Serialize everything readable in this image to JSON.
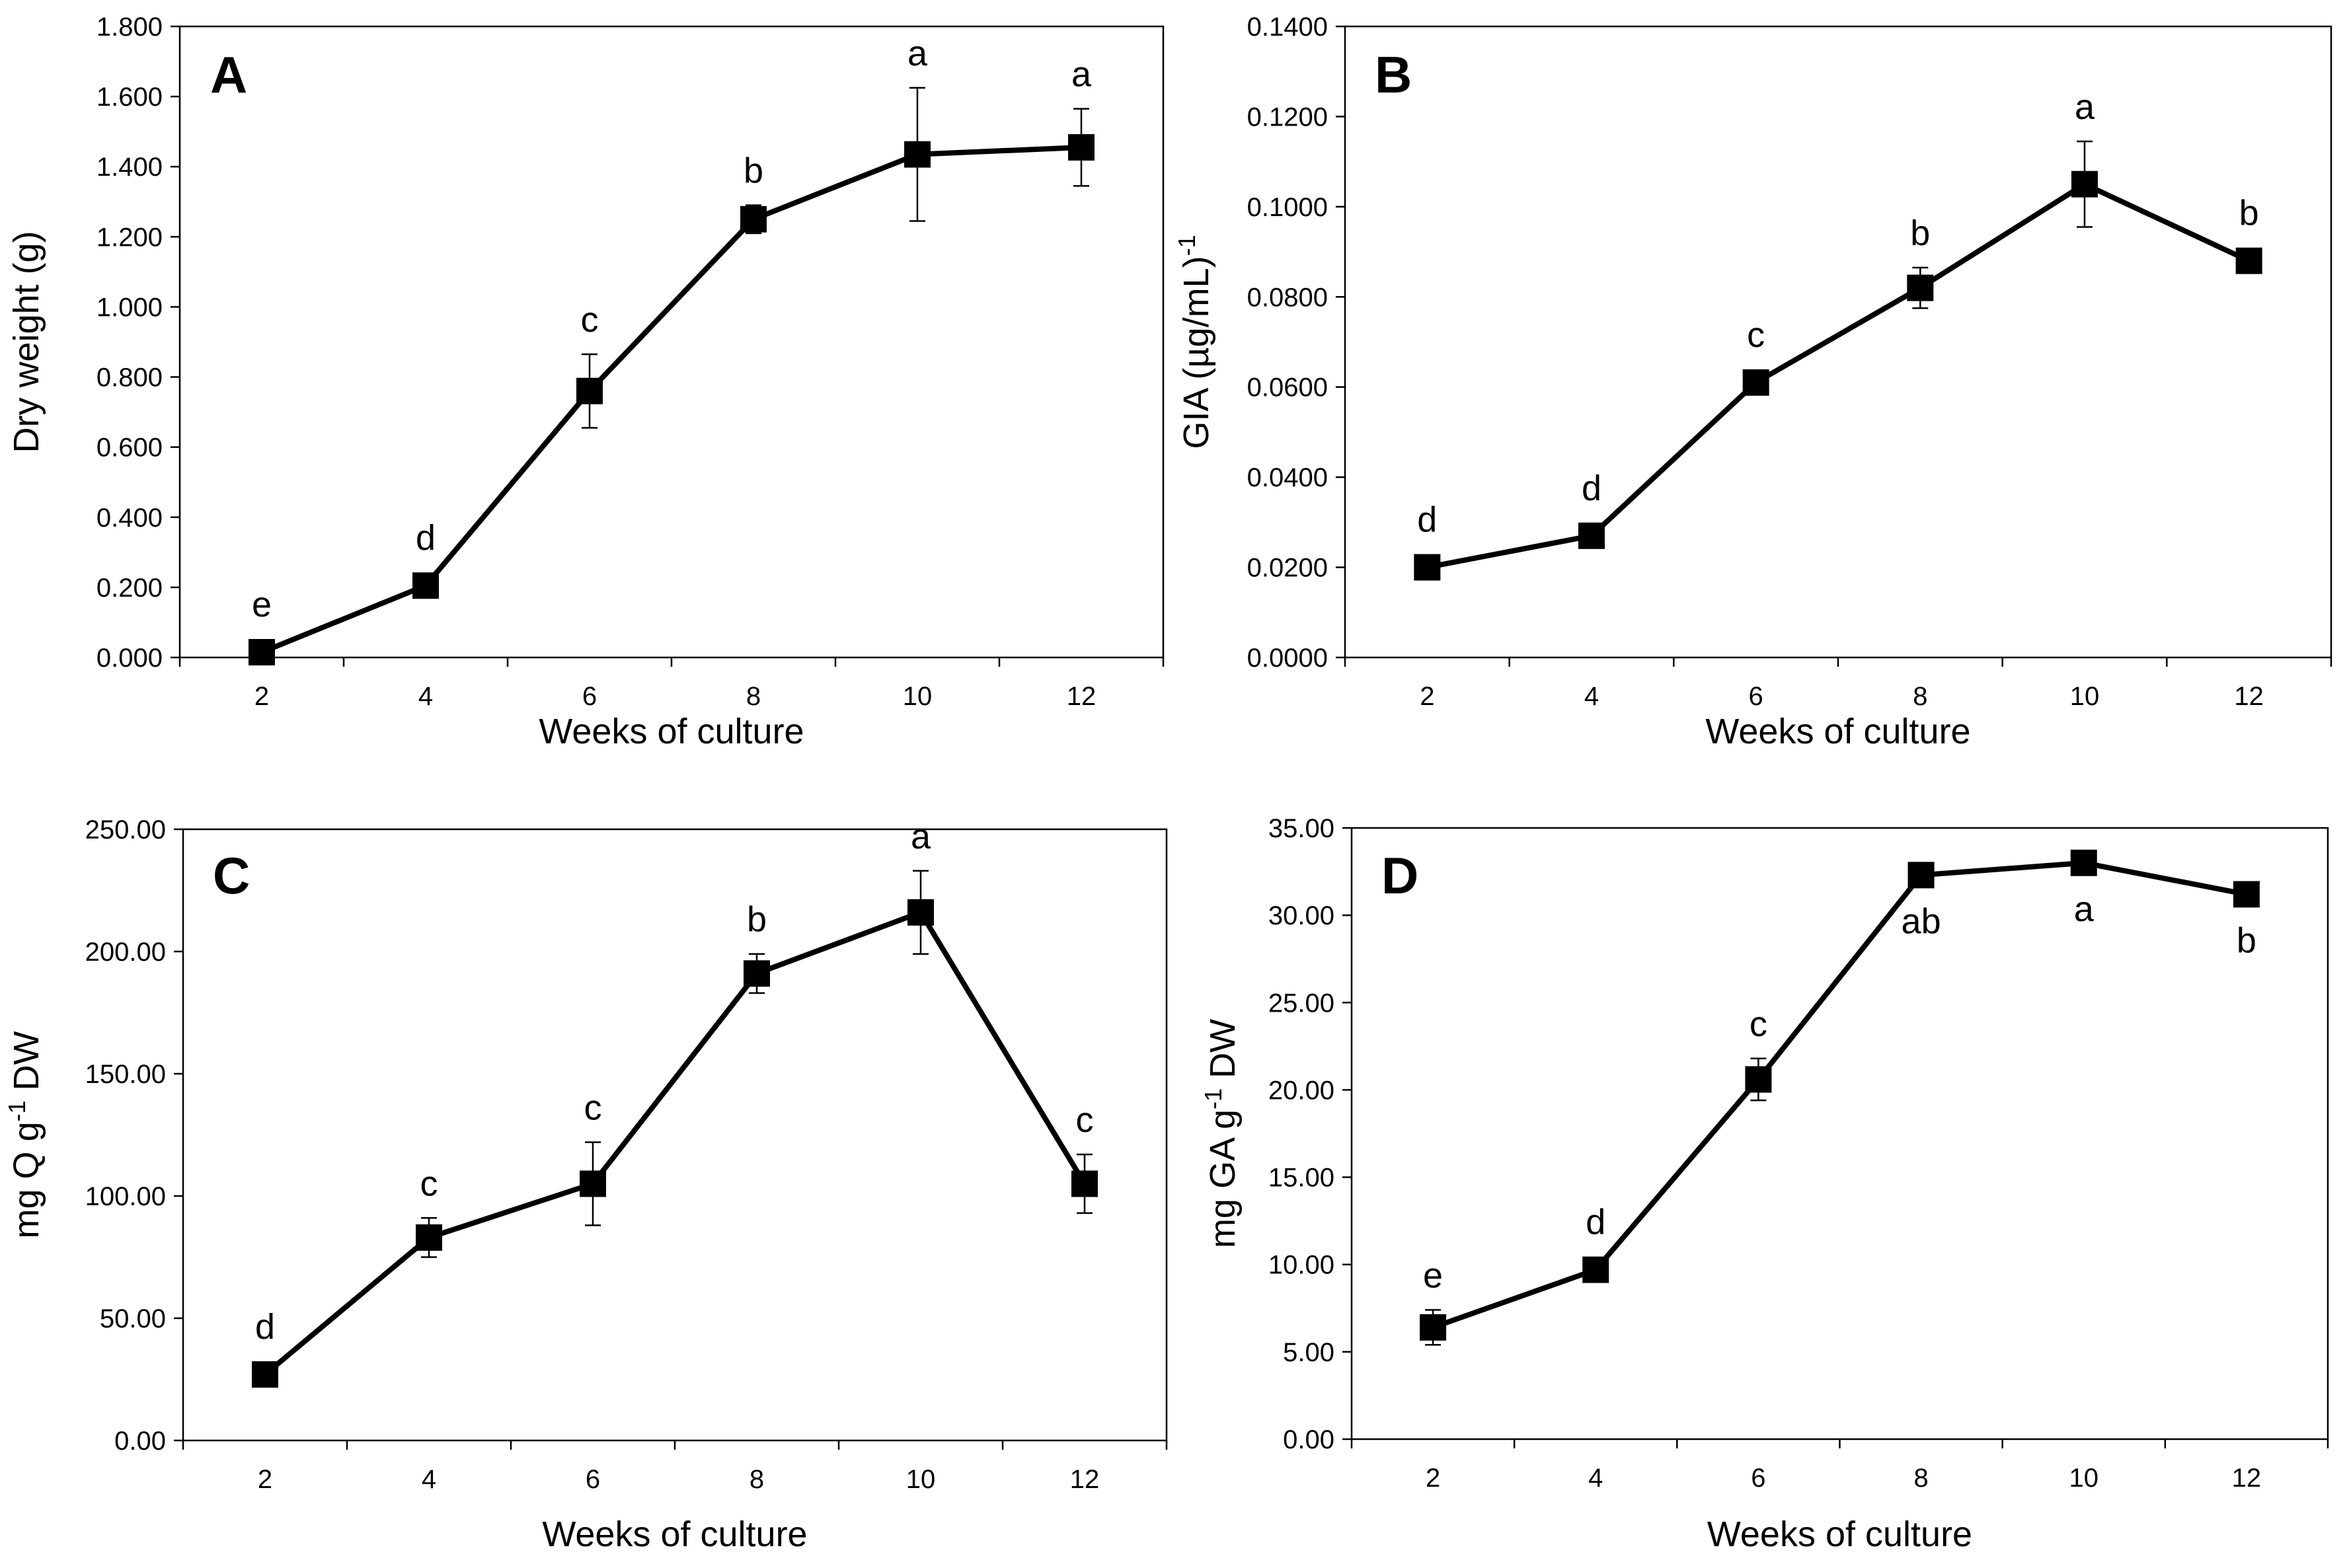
{
  "chart_data": [
    {
      "type": "line",
      "panel_label": "A",
      "title": "",
      "xlabel": "Weeks of culture",
      "ylabel_parts": [
        {
          "t": "Dry weight (g)"
        }
      ],
      "x": [
        2,
        4,
        6,
        8,
        10,
        12
      ],
      "xlim": [
        1,
        13
      ],
      "x_tick_labels": [
        "2",
        "4",
        "6",
        "8",
        "10",
        "12"
      ],
      "ylim": [
        0,
        1.8
      ],
      "y_tick_labels": [
        "0.000",
        "0.200",
        "0.400",
        "0.600",
        "0.800",
        "1.000",
        "1.200",
        "1.400",
        "1.600",
        "1.800"
      ],
      "series": [
        {
          "name": "Dry weight",
          "values": [
            0.015,
            0.205,
            0.76,
            1.25,
            1.435,
            1.455
          ],
          "errors": [
            0.0,
            0.0,
            0.105,
            0.04,
            0.19,
            0.11
          ],
          "significance": [
            "e",
            "d",
            "c",
            "b",
            "a",
            "a"
          ],
          "sig_position": "above"
        }
      ],
      "grid": false,
      "legend": "none",
      "marker": "square",
      "line_color": "#000000"
    },
    {
      "type": "line",
      "panel_label": "B",
      "title": "",
      "xlabel": "Weeks of culture",
      "ylabel_parts": [
        {
          "t": "GIA (µg/mL)"
        },
        {
          "t": "-1",
          "sup": true
        }
      ],
      "x": [
        2,
        4,
        6,
        8,
        10,
        12
      ],
      "xlim": [
        1,
        13
      ],
      "x_tick_labels": [
        "2",
        "4",
        "6",
        "8",
        "10",
        "12"
      ],
      "ylim": [
        0,
        0.14
      ],
      "y_tick_labels": [
        "0.0000",
        "0.0200",
        "0.0400",
        "0.0600",
        "0.0800",
        "0.1000",
        "0.1200",
        "0.1400"
      ],
      "series": [
        {
          "name": "GIA",
          "values": [
            0.02,
            0.027,
            0.061,
            0.082,
            0.105,
            0.088
          ],
          "errors": [
            0.0,
            0.0,
            0.0,
            0.0045,
            0.0095,
            0.0
          ],
          "significance": [
            "d",
            "d",
            "c",
            "b",
            "a",
            "b"
          ],
          "sig_position": "above"
        }
      ],
      "grid": false,
      "legend": "none",
      "marker": "square",
      "line_color": "#000000"
    },
    {
      "type": "line",
      "panel_label": "C",
      "title": "",
      "xlabel": "Weeks of culture",
      "ylabel_parts": [
        {
          "t": "mg Q g"
        },
        {
          "t": "-1",
          "sup": true
        },
        {
          "t": " DW"
        }
      ],
      "x": [
        2,
        4,
        6,
        8,
        10,
        12
      ],
      "xlim": [
        1,
        13
      ],
      "x_tick_labels": [
        "2",
        "4",
        "6",
        "8",
        "10",
        "12"
      ],
      "ylim": [
        0,
        250
      ],
      "y_tick_labels": [
        "0.00",
        "50.00",
        "100.00",
        "150.00",
        "200.00",
        "250.00"
      ],
      "series": [
        {
          "name": "mg Q per g DW",
          "values": [
            27,
            83,
            105,
            191,
            216,
            105
          ],
          "errors": [
            0,
            8,
            17,
            8,
            17,
            12
          ],
          "significance": [
            "d",
            "c",
            "c",
            "b",
            "a",
            "c"
          ],
          "sig_position": "above"
        }
      ],
      "grid": false,
      "legend": "none",
      "marker": "square",
      "line_color": "#000000"
    },
    {
      "type": "line",
      "panel_label": "D",
      "title": "",
      "xlabel": "Weeks of culture",
      "ylabel_parts": [
        {
          "t": "mg GA g"
        },
        {
          "t": "-1",
          "sup": true
        },
        {
          "t": " DW"
        }
      ],
      "x": [
        2,
        4,
        6,
        8,
        10,
        12
      ],
      "xlim": [
        1,
        13
      ],
      "x_tick_labels": [
        "2",
        "4",
        "6",
        "8",
        "10",
        "12"
      ],
      "ylim": [
        0,
        35
      ],
      "y_tick_labels": [
        "0.00",
        "5.00",
        "10.00",
        "15.00",
        "20.00",
        "25.00",
        "30.00",
        "35.00"
      ],
      "series": [
        {
          "name": "mg GA per g DW",
          "values": [
            6.4,
            9.7,
            20.6,
            32.3,
            33.0,
            31.2
          ],
          "errors": [
            1.0,
            0.0,
            1.2,
            0.0,
            0.0,
            0.0
          ],
          "significance": [
            "e",
            "d",
            "c",
            "ab",
            "a",
            "b"
          ],
          "sig_position": "mixed"
        }
      ],
      "grid": false,
      "legend": "none",
      "marker": "square",
      "line_color": "#000000"
    }
  ]
}
